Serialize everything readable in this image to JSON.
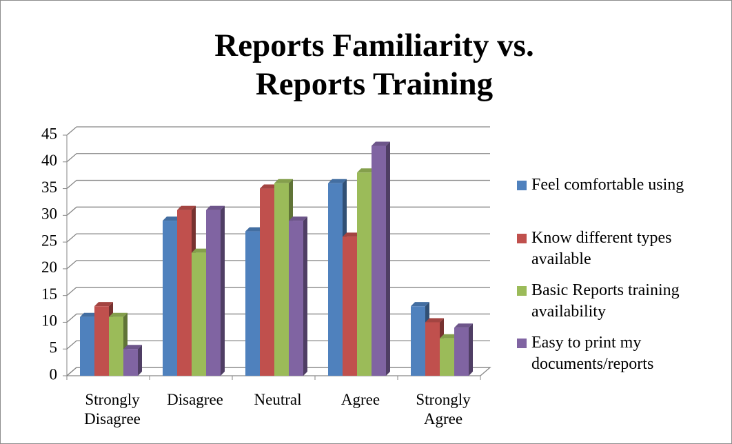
{
  "chart_data": {
    "type": "bar3d",
    "title": "Reports Familiarity vs. Reports Training",
    "categories": [
      "Strongly Disagree",
      "Disagree",
      "Neutral",
      "Agree",
      "Strongly Agree"
    ],
    "series": [
      {
        "name": "Feel comfortable using",
        "color": "#4f81bd",
        "values": [
          11,
          29,
          27,
          36,
          13
        ]
      },
      {
        "name": "Know different types available",
        "color": "#c0504d",
        "values": [
          13,
          31,
          35,
          26,
          10
        ]
      },
      {
        "name": "Basic Reports training availability",
        "color": "#9bbb59",
        "values": [
          11,
          23,
          36,
          38,
          7
        ]
      },
      {
        "name": "Easy to print my documents/reports",
        "color": "#8064a2",
        "values": [
          5,
          31,
          29,
          43,
          9
        ]
      }
    ],
    "ylim": [
      0,
      45
    ],
    "yticks": [
      0,
      5,
      10,
      15,
      20,
      25,
      30,
      35,
      40,
      45
    ],
    "grid": true,
    "legend": "right"
  }
}
